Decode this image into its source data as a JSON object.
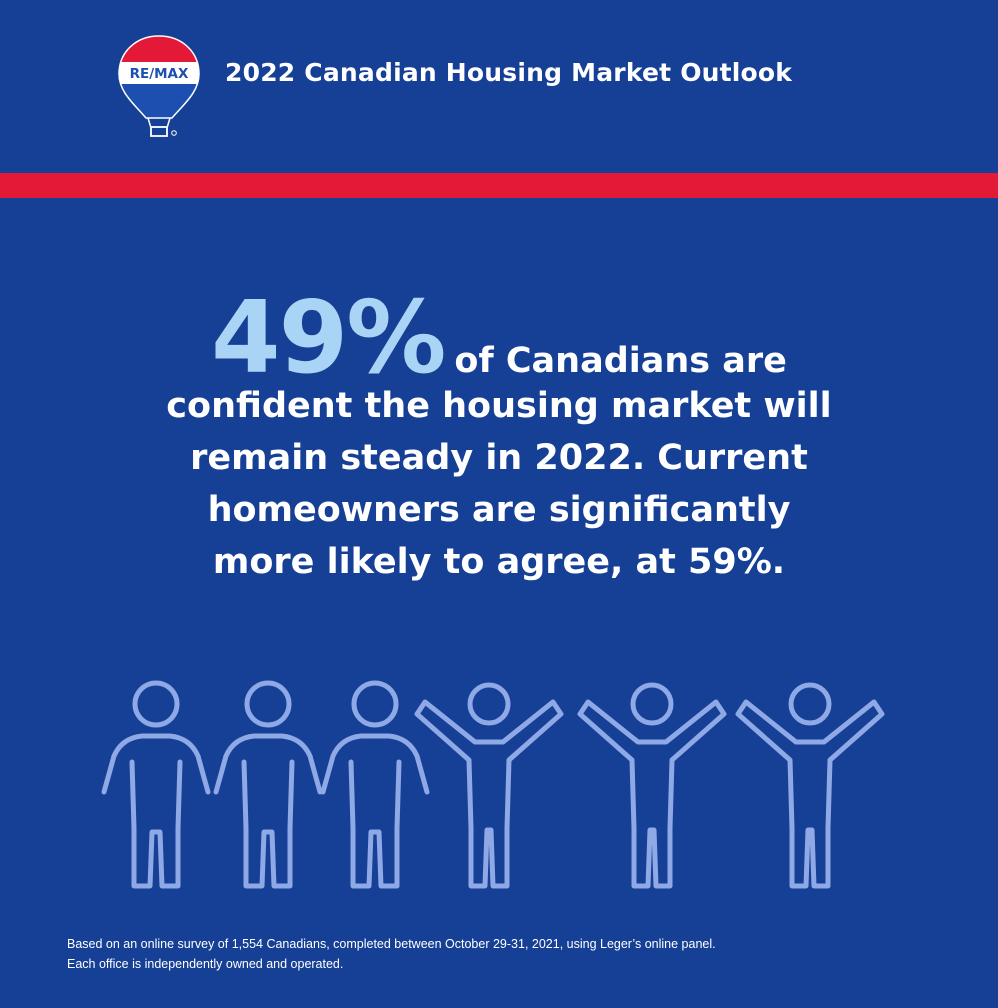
{
  "header": {
    "logo_text": "RE/MAX",
    "title": "2022 Canadian Housing Market Outlook"
  },
  "colors": {
    "background": "#163f96",
    "stripe": "#e31937",
    "stat_accent": "#a9d4f5",
    "figure_outline": "#8fa8e6"
  },
  "headline": {
    "stat_value": "49%",
    "stat_lead": "of Canadians are",
    "lines": [
      "confident the housing market will",
      "remain steady in 2022. Current",
      "homeowners are significantly",
      "more likely to agree, at 59%."
    ]
  },
  "figures": [
    {
      "icon": "person-standing-icon"
    },
    {
      "icon": "person-standing-icon"
    },
    {
      "icon": "person-standing-icon"
    },
    {
      "icon": "person-arms-raised-icon"
    },
    {
      "icon": "person-arms-raised-icon"
    },
    {
      "icon": "person-arms-raised-icon"
    }
  ],
  "footnote": {
    "line1": "Based on an online survey of 1,554 Canadians, completed between October 29-31, 2021, using Leger’s online panel.",
    "line2": "Each office is independently owned and operated."
  }
}
